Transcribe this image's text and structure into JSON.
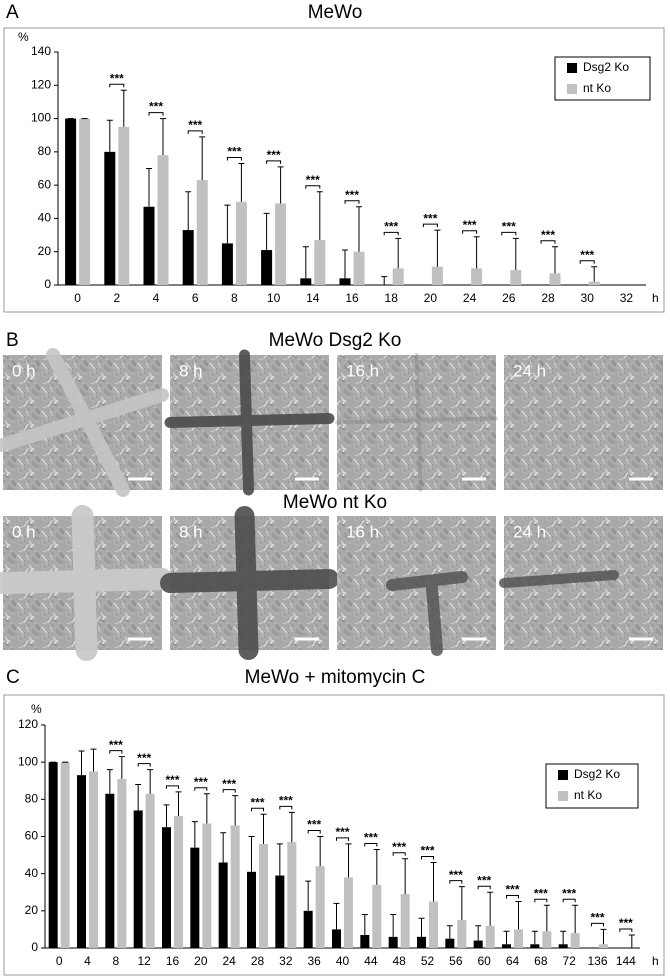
{
  "chart_data": [
    {
      "type": "bar",
      "panel_label": "A",
      "title": "MeWo",
      "y_unit": "%",
      "x_unit": "h",
      "categories": [
        "0",
        "2",
        "4",
        "6",
        "8",
        "10",
        "14",
        "16",
        "18",
        "20",
        "24",
        "26",
        "28",
        "30",
        "32"
      ],
      "series": [
        {
          "name": "Dsg2 Ko",
          "color": "#000000",
          "values": [
            100,
            80,
            47,
            33,
            25,
            21,
            4,
            4,
            0,
            0,
            0,
            0,
            0,
            0,
            0
          ],
          "errors": [
            0,
            19,
            23,
            23,
            23,
            22,
            19,
            17,
            5,
            0,
            0,
            0,
            0,
            0,
            0
          ]
        },
        {
          "name": "nt Ko",
          "color": "#c0c0c0",
          "values": [
            100,
            95,
            78,
            63,
            50,
            49,
            27,
            20,
            10,
            11,
            10,
            9,
            7,
            2,
            0
          ],
          "errors": [
            0,
            22,
            22,
            26,
            23,
            22,
            29,
            27,
            18,
            22,
            19,
            19,
            16,
            9,
            0
          ]
        }
      ],
      "significance": [
        null,
        "***",
        "***",
        "***",
        "***",
        "***",
        "***",
        "***",
        "***",
        "***",
        "***",
        "***",
        "***",
        "***",
        null
      ],
      "ylim": [
        0,
        140
      ],
      "yticks": [
        0,
        20,
        40,
        60,
        80,
        100,
        120,
        140
      ],
      "legend": "upper right"
    },
    {
      "type": "bar",
      "panel_label": "C",
      "title": "MeWo + mitomycin C",
      "y_unit": "%",
      "x_unit": "h",
      "categories": [
        "0",
        "4",
        "8",
        "12",
        "16",
        "20",
        "24",
        "28",
        "32",
        "36",
        "40",
        "44",
        "48",
        "52",
        "56",
        "60",
        "64",
        "68",
        "72",
        "136",
        "144"
      ],
      "series": [
        {
          "name": "Dsg2 Ko",
          "color": "#000000",
          "values": [
            100,
            93,
            83,
            74,
            65,
            54,
            46,
            41,
            39,
            20,
            10,
            7,
            6,
            6,
            5,
            4,
            2,
            2,
            2,
            0,
            0
          ],
          "errors": [
            0,
            13,
            13,
            14,
            12,
            14,
            16,
            19,
            17,
            16,
            14,
            11,
            12,
            10,
            7,
            8,
            7,
            7,
            7,
            0,
            0
          ]
        },
        {
          "name": "nt Ko",
          "color": "#c0c0c0",
          "values": [
            100,
            95,
            91,
            83,
            71,
            67,
            66,
            56,
            57,
            44,
            38,
            34,
            29,
            25,
            15,
            12,
            10,
            9,
            8,
            2,
            0
          ],
          "errors": [
            0,
            12,
            12,
            13,
            13,
            16,
            16,
            16,
            16,
            16,
            18,
            19,
            19,
            21,
            18,
            18,
            15,
            14,
            15,
            8,
            7
          ]
        }
      ],
      "significance": [
        null,
        null,
        "***",
        "***",
        "***",
        "***",
        "***",
        "***",
        "***",
        "***",
        "***",
        "***",
        "***",
        "***",
        "***",
        "***",
        "***",
        "***",
        "***",
        "***",
        "***"
      ],
      "ylim": [
        0,
        120
      ],
      "yticks": [
        0,
        20,
        40,
        60,
        80,
        100,
        120
      ],
      "legend": "upper right"
    }
  ],
  "panel_b": {
    "panel_label": "B",
    "groups": [
      {
        "title": "MeWo Dsg2 Ko",
        "images": [
          "0 h",
          "8 h",
          "16 h",
          "24 h"
        ]
      },
      {
        "title": "MeWo nt Ko",
        "images": [
          "0 h",
          "8 h",
          "16 h",
          "24 h"
        ]
      }
    ]
  }
}
